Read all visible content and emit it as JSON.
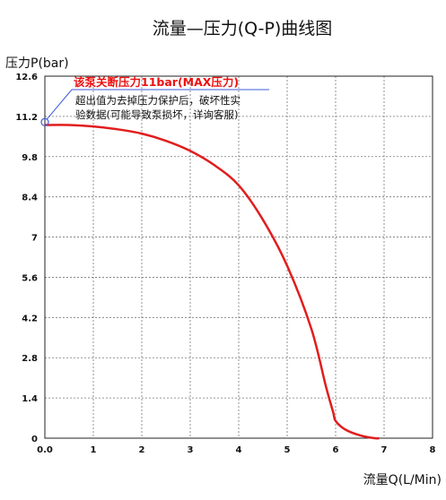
{
  "chart_data": {
    "type": "line",
    "title": "流量—压力(Q-P)曲线图",
    "xlabel": "流量Q(L/Min)",
    "ylabel": "压力P(bar)",
    "xlim": [
      0,
      8
    ],
    "ylim": [
      0,
      12.6
    ],
    "x_ticks": [
      "0.0",
      "1",
      "2",
      "3",
      "4",
      "5",
      "6",
      "7",
      "8"
    ],
    "y_ticks": [
      "0",
      "1.4",
      "2.8",
      "4.2",
      "5.6",
      "7",
      "8.4",
      "9.8",
      "11.2",
      "12.6"
    ],
    "x_tick_values": [
      0,
      1,
      2,
      3,
      4,
      5,
      6,
      7,
      8
    ],
    "y_tick_values": [
      0,
      1.4,
      2.8,
      4.2,
      5.6,
      7,
      8.4,
      9.8,
      11.2,
      12.6
    ],
    "grid": true,
    "series": [
      {
        "color": "#e11d1d",
        "x": [
          0,
          0.5,
          1,
          1.5,
          2,
          2.5,
          3,
          3.5,
          4,
          4.5,
          5,
          5.5,
          5.8,
          5.95,
          6.0,
          6.2,
          6.5,
          6.8,
          6.9
        ],
        "y": [
          10.9,
          10.9,
          10.85,
          10.75,
          10.6,
          10.35,
          10.0,
          9.5,
          8.8,
          7.6,
          6.0,
          3.8,
          1.8,
          0.9,
          0.6,
          0.3,
          0.1,
          0.0,
          0.0
        ]
      }
    ],
    "annotations": {
      "max_label": "该泵关断压力11bar(MAX压力)",
      "note_line1": "超出值为去掉压力保护后，破坏性实",
      "note_line2": "验数据(可能导致泵损坏，详询客服)",
      "marker_point": [
        0,
        11.0
      ]
    }
  }
}
